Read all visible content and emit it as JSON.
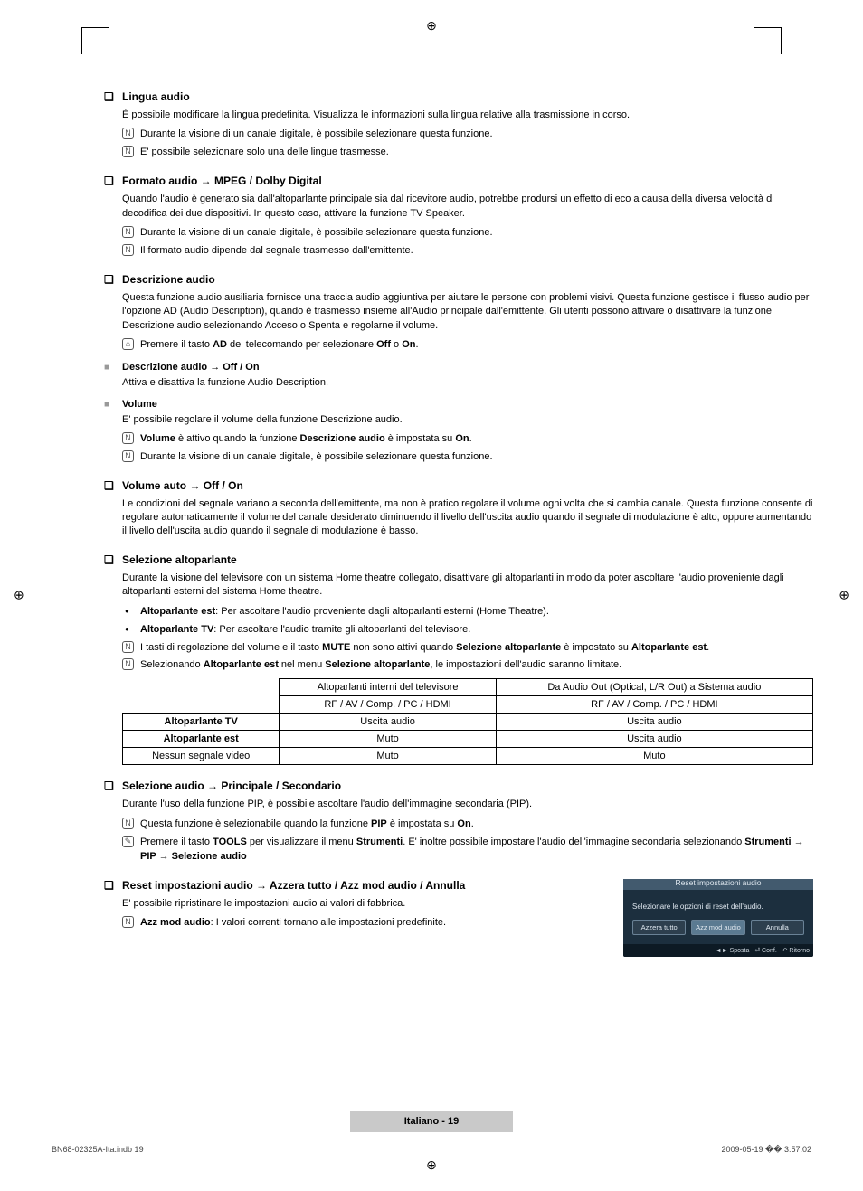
{
  "registration_glyphs": {
    "top": "⊕",
    "left": "⊕",
    "right": "⊕",
    "bottom": "⊕"
  },
  "sections": {
    "lingua": {
      "title": "Lingua audio",
      "desc": "È possibile modificare la lingua predefinita. Visualizza le informazioni sulla lingua relative alla trasmissione in corso.",
      "note1": "Durante la visione di un canale digitale, è possibile selezionare questa funzione.",
      "note2": "E' possibile selezionare solo una delle lingue trasmesse."
    },
    "formato": {
      "title": "Formato audio → MPEG / Dolby Digital",
      "desc": "Quando l'audio è generato sia dall'altoparlante principale sia dal ricevitore audio, potrebbe prodursi un effetto di eco a causa della diversa velocità di decodifica dei due dispositivi. In questo caso, attivare la funzione TV Speaker.",
      "note1": "Durante la visione di un canale digitale, è possibile selezionare questa funzione.",
      "note2": "Il formato audio dipende dal segnale trasmesso dall'emittente."
    },
    "descrizione": {
      "title": "Descrizione audio",
      "desc": "Questa funzione audio ausiliaria fornisce una traccia audio aggiuntiva per aiutare le persone con problemi visivi. Questa funzione gestisce il flusso audio per l'opzione AD (Audio Description), quando è trasmesso insieme all'Audio principale dall'emittente. Gli utenti possono attivare o disattivare la funzione Descrizione audio selezionando Acceso o Spenta e regolarne il volume.",
      "note_pre": "Premere il tasto ",
      "note_ad": "AD",
      "note_mid": " del telecomando per selezionare ",
      "note_off": "Off",
      "note_or": " o ",
      "note_on": "On",
      "note_suffix": ".",
      "sub1_title": "Descrizione audio → Off / On",
      "sub1_desc": "Attiva e disattiva la funzione Audio Description.",
      "sub2_title": "Volume",
      "sub2_desc": "E' possibile regolare il volume della funzione Descrizione audio.",
      "sub2_note1_pre": "Volume",
      "sub2_note1_mid": " è attivo quando la funzione ",
      "sub2_note1_desc": "Descrizione audio",
      "sub2_note1_mid2": " è impostata su ",
      "sub2_note1_on": "On",
      "sub2_note1_suf": ".",
      "sub2_note2": "Durante la visione di un canale digitale, è possibile selezionare questa funzione."
    },
    "volumeauto": {
      "title": "Volume auto → Off / On",
      "desc": "Le condizioni del segnale variano a seconda dell'emittente, ma non è pratico regolare il volume ogni volta che si cambia canale. Questa funzione consente di regolare automaticamente il volume del canale desiderato diminuendo il livello dell'uscita audio quando il segnale di modulazione è alto, oppure aumentando il livello dell'uscita audio quando il segnale di modulazione è basso."
    },
    "selezione_alto": {
      "title": "Selezione altoparlante",
      "desc": "Durante la visione del televisore con un sistema Home theatre collegato, disattivare gli altoparlanti in modo da poter ascoltare l'audio proveniente dagli altoparlanti esterni del sistema Home theatre.",
      "b1_pre": "Altoparlante est",
      "b1_txt": ": Per ascoltare l'audio proveniente dagli altoparlanti esterni (Home Theatre).",
      "b2_pre": "Altoparlante TV",
      "b2_txt": ": Per ascoltare l'audio tramite gli altoparlanti del televisore.",
      "n1_pre": "I tasti di regolazione del volume e il tasto ",
      "n1_mute": "MUTE",
      "n1_mid": " non sono attivi quando ",
      "n1_sel": "Selezione altoparlante",
      "n1_mid2": " è impostato su ",
      "n1_alto": "Altoparlante est",
      "n1_suf": ".",
      "n2_pre": "Selezionando ",
      "n2_alto": "Altoparlante est",
      "n2_mid": " nel menu ",
      "n2_sel": "Selezione altoparlante",
      "n2_suf": ", le impostazioni dell'audio saranno limitate.",
      "table": {
        "h1": "Altoparlanti interni del televisore",
        "h2": "Da Audio Out (Optical, L/R Out) a Sistema audio",
        "sub": "RF / AV / Comp. / PC / HDMI",
        "r1": "Altoparlante TV",
        "r1c1": "Uscita audio",
        "r1c2": "Uscita audio",
        "r2": "Altoparlante est",
        "r2c1": "Muto",
        "r2c2": "Uscita audio",
        "r3": "Nessun segnale video",
        "r3c1": "Muto",
        "r3c2": "Muto"
      }
    },
    "selezione_audio": {
      "title": "Selezione audio → Principale / Secondario",
      "desc": "Durante l'uso della funzione PIP, è possibile ascoltare l'audio dell'immagine secondaria (PIP).",
      "n1_pre": "Questa funzione è selezionabile quando la funzione ",
      "n1_pip": "PIP",
      "n1_mid": " è impostata su ",
      "n1_on": "On",
      "n1_suf": ".",
      "n2_pre": "Premere il tasto ",
      "n2_tools": "TOOLS",
      "n2_mid": " per visualizzare il menu ",
      "n2_str": "Strumenti",
      "n2_mid2": ". E' inoltre possibile impostare l'audio dell'immagine secondaria selezionando ",
      "n2_path": "Strumenti → PIP → Selezione audio"
    },
    "reset": {
      "title": "Reset impostazioni audio → Azzera tutto / Azz mod audio / Annulla",
      "desc": "E' possibile ripristinare le impostazioni audio ai valori di fabbrica.",
      "n1_pre": "Azz mod audio",
      "n1_txt": ": I valori correnti tornano alle impostazioni predefinite.",
      "panel": {
        "title": "Reset impostazioni audio",
        "msg": "Selezionare le opzioni di reset dell'audio.",
        "btn1": "Azzera tutto",
        "btn2": "Azz mod audio",
        "btn3": "Annulla",
        "foot_move": "◄► Sposta",
        "foot_conf": "⏎ Conf.",
        "foot_ret": "↶ Ritorno"
      }
    }
  },
  "footer": {
    "lang": "Italiano - 19"
  },
  "meta": {
    "left": "BN68-02325A-Ita.indb   19",
    "right": "2009-05-19   �� 3:57:02"
  },
  "colors": {
    "page_bg": "#ffffff",
    "text": "#000000",
    "grey_bullet": "#999999",
    "panel_bg": "#1c2f3e",
    "panel_header": "#425a6e",
    "panel_border": "#6a8296",
    "panel_text": "#e0e8f0",
    "footer_band": "#c9c9c9"
  }
}
